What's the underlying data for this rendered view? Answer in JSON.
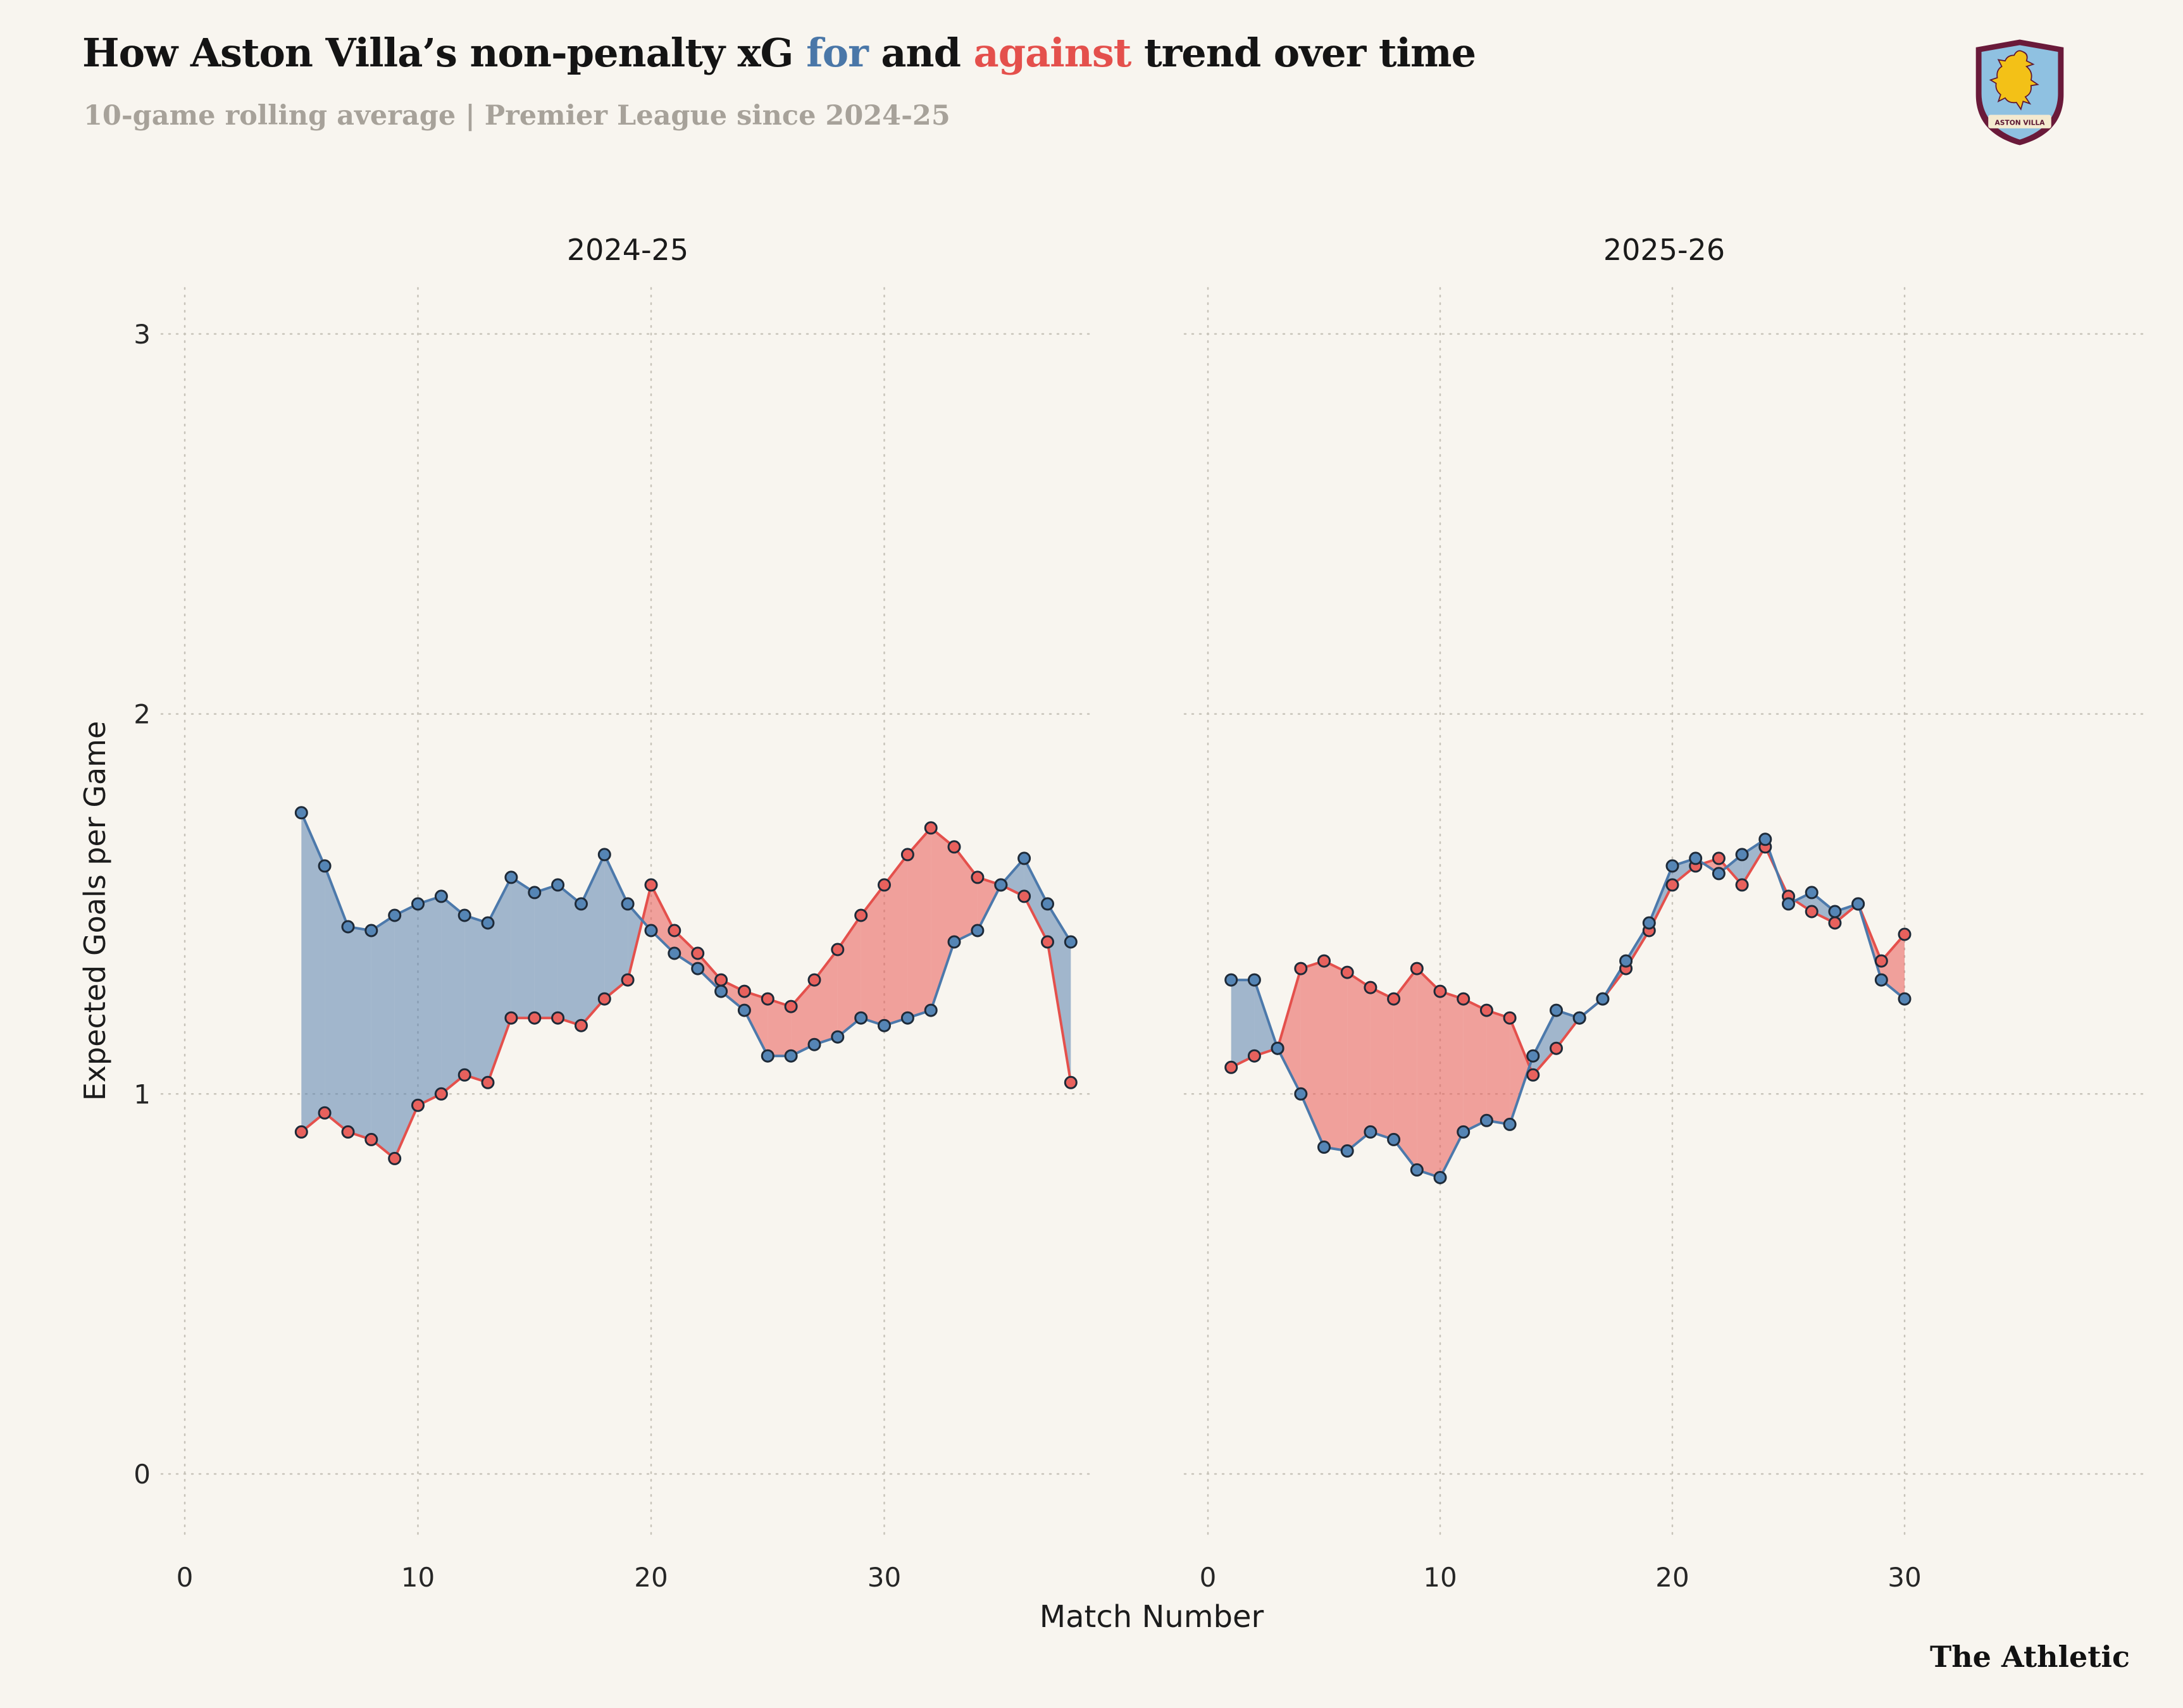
{
  "header": {
    "subtitle": "10-game rolling average | Premier League since 2024-25"
  },
  "crest": {
    "club": "Aston Villa",
    "banner_text": "ASTON VILLA"
  },
  "footer": {
    "brand": "The Athletic"
  },
  "colors": {
    "background": "#f8f5ef",
    "for_line": "#4c79ab",
    "for_marker": "#5585b5",
    "for_fill": "rgba(90,130,175,0.55)",
    "against_line": "#e4504c",
    "against_marker": "#e8615d",
    "against_fill": "rgba(233,90,85,0.55)",
    "marker_stroke": "#1e2a38",
    "grid": "#c8c4ba",
    "text": "#1c1c1c"
  },
  "chart_data": {
    "type": "line",
    "title_rich": {
      "pre": "How Aston Villa’s non-penalty xG ",
      "for": "for",
      "mid": " and ",
      "against": "against",
      "post": " trend over time"
    },
    "subtitle": "10-game rolling average | Premier League since 2024-25",
    "xlabel": "Match Number",
    "ylabel": "Expected Goals per Game",
    "ylim": [
      0,
      3
    ],
    "yticks": [
      0,
      1,
      2,
      3
    ],
    "grid": "dotted",
    "legend_position": "inline-in-title",
    "panels": [
      {
        "label": "2024-25",
        "xticks": [
          0,
          10,
          20,
          30
        ],
        "xlim": [
          -1,
          39
        ],
        "x": [
          5,
          6,
          7,
          8,
          9,
          10,
          11,
          12,
          13,
          14,
          15,
          16,
          17,
          18,
          19,
          20,
          21,
          22,
          23,
          24,
          25,
          26,
          27,
          28,
          29,
          30,
          31,
          32,
          33,
          34,
          35,
          36,
          37,
          38
        ],
        "series": [
          {
            "name": "xG for",
            "color": "#4c79ab",
            "values": [
              1.74,
              1.6,
              1.44,
              1.43,
              1.47,
              1.5,
              1.52,
              1.47,
              1.45,
              1.57,
              1.53,
              1.55,
              1.5,
              1.63,
              1.5,
              1.43,
              1.37,
              1.33,
              1.27,
              1.22,
              1.1,
              1.1,
              1.13,
              1.15,
              1.2,
              1.18,
              1.2,
              1.22,
              1.4,
              1.43,
              1.55,
              1.62,
              1.5,
              1.4
            ]
          },
          {
            "name": "xG against",
            "color": "#e4504c",
            "values": [
              0.9,
              0.95,
              0.9,
              0.88,
              0.83,
              0.97,
              1.0,
              1.05,
              1.03,
              1.2,
              1.2,
              1.2,
              1.18,
              1.25,
              1.3,
              1.55,
              1.43,
              1.37,
              1.3,
              1.27,
              1.25,
              1.23,
              1.3,
              1.38,
              1.47,
              1.55,
              1.63,
              1.7,
              1.65,
              1.57,
              1.55,
              1.52,
              1.4,
              1.03
            ]
          }
        ]
      },
      {
        "label": "2025-26",
        "xticks": [
          0,
          10,
          20,
          30
        ],
        "xlim": [
          -1,
          40
        ],
        "x": [
          1,
          2,
          3,
          4,
          5,
          6,
          7,
          8,
          9,
          10,
          11,
          12,
          13,
          14,
          15,
          16,
          17,
          18,
          19,
          20,
          21,
          22,
          23,
          24,
          25,
          26,
          27,
          28,
          29,
          30
        ],
        "series": [
          {
            "name": "xG for",
            "color": "#4c79ab",
            "values": [
              1.3,
              1.3,
              1.12,
              1.0,
              0.86,
              0.85,
              0.9,
              0.88,
              0.8,
              0.78,
              0.9,
              0.93,
              0.92,
              1.1,
              1.22,
              1.2,
              1.25,
              1.35,
              1.45,
              1.6,
              1.62,
              1.58,
              1.63,
              1.67,
              1.5,
              1.53,
              1.48,
              1.5,
              1.3,
              1.25
            ]
          },
          {
            "name": "xG against",
            "color": "#e4504c",
            "values": [
              1.07,
              1.1,
              1.12,
              1.33,
              1.35,
              1.32,
              1.28,
              1.25,
              1.33,
              1.27,
              1.25,
              1.22,
              1.2,
              1.05,
              1.12,
              1.2,
              1.25,
              1.33,
              1.43,
              1.55,
              1.6,
              1.62,
              1.55,
              1.65,
              1.52,
              1.48,
              1.45,
              1.5,
              1.35,
              1.42
            ]
          }
        ]
      }
    ]
  }
}
